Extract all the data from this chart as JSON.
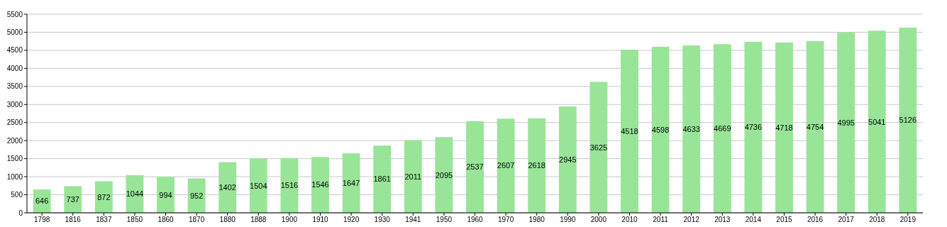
{
  "chart_data": {
    "type": "bar",
    "categories": [
      "1798",
      "1816",
      "1837",
      "1850",
      "1860",
      "1870",
      "1880",
      "1888",
      "1900",
      "1910",
      "1920",
      "1930",
      "1941",
      "1950",
      "1960",
      "1970",
      "1980",
      "1990",
      "2000",
      "2010",
      "2011",
      "2012",
      "2013",
      "2014",
      "2015",
      "2016",
      "2017",
      "2018",
      "2019"
    ],
    "values": [
      646,
      737,
      872,
      1044,
      994,
      952,
      1402,
      1504,
      1516,
      1546,
      1647,
      1861,
      2011,
      2095,
      2537,
      2607,
      2618,
      2945,
      3625,
      4518,
      4598,
      4633,
      4669,
      4736,
      4718,
      4754,
      4995,
      5041,
      5126
    ],
    "color": "#98e598",
    "ylim": [
      0,
      5500
    ],
    "yticks": [
      0,
      500,
      1000,
      1500,
      2000,
      2500,
      3000,
      3500,
      4000,
      4500,
      5000,
      5500
    ],
    "grid": "y",
    "data_labels": true
  }
}
